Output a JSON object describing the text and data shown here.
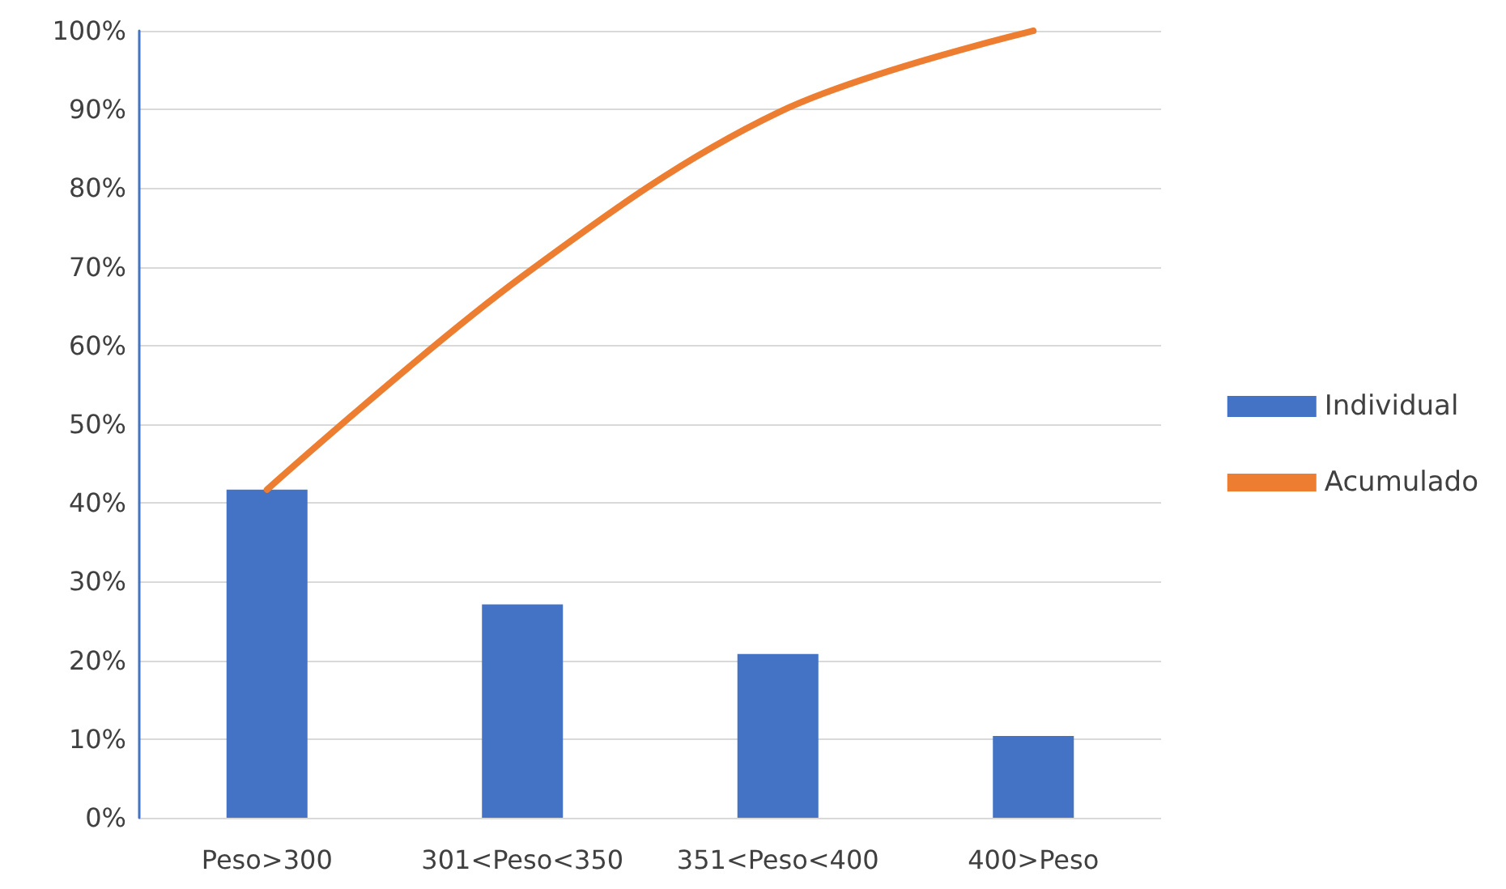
{
  "chart_data": {
    "type": "bar",
    "categories": [
      "Peso>300",
      "301<Peso<350",
      "351<Peso<400",
      "400>Peso"
    ],
    "series": [
      {
        "name": "Individual",
        "color": "#4472c4",
        "values": [
          41.7,
          27.1,
          20.8,
          10.4
        ]
      },
      {
        "name": "Acumulado",
        "type": "line",
        "color": "#ed7d31",
        "values": [
          41.7,
          68.8,
          89.6,
          100
        ]
      }
    ],
    "ylim": [
      0,
      100
    ],
    "yticks": [
      {
        "value": 0,
        "label": "0%"
      },
      {
        "value": 10,
        "label": "10%"
      },
      {
        "value": 20,
        "label": "20%"
      },
      {
        "value": 30,
        "label": "30%"
      },
      {
        "value": 40,
        "label": "40%"
      },
      {
        "value": 50,
        "label": "50%"
      },
      {
        "value": 60,
        "label": "60%"
      },
      {
        "value": 70,
        "label": "70%"
      },
      {
        "value": 80,
        "label": "80%"
      },
      {
        "value": 90,
        "label": "90%"
      },
      {
        "value": 100,
        "label": "100%"
      }
    ],
    "grid": "y",
    "legend": "right",
    "marker": "none",
    "line_style": "solid"
  }
}
